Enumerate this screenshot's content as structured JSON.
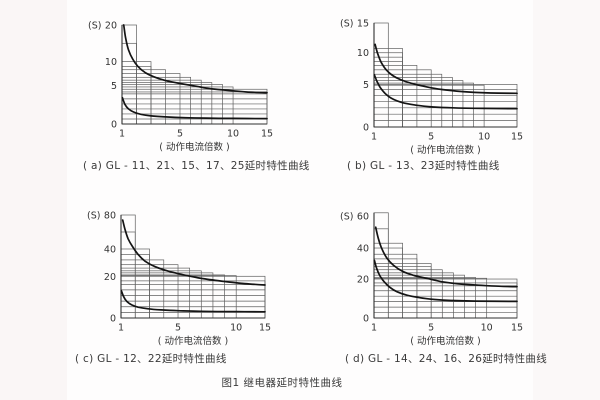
{
  "figure": {
    "title": "图1 继电器延时特性曲线"
  },
  "colors": {
    "curve": "#141414",
    "grid": "#5f5f5f",
    "axis": "#2f2f2f",
    "text": "#333333",
    "page_background": "#fefdfd",
    "margin_background": "#faf6f6"
  },
  "chart_data": [
    {
      "id": "a",
      "type": "line",
      "caption": "( a) GL - 11、21、15、17、25延时特性曲线",
      "y_unit": "(S)",
      "xlabel": "( 动作电流倍数 )",
      "x_ticks": [
        1,
        5,
        10,
        15
      ],
      "y_ticks": [
        0,
        5,
        10,
        20
      ],
      "x_range": [
        1,
        15
      ],
      "y_range": [
        0,
        20
      ],
      "x_anchors": [
        [
          1,
          0
        ],
        [
          5,
          0.4
        ],
        [
          10,
          0.766
        ],
        [
          15,
          1
        ]
      ],
      "y_anchors": [
        [
          0,
          0
        ],
        [
          5,
          0.39
        ],
        [
          10,
          0.63
        ],
        [
          15,
          0.815
        ],
        [
          20,
          1
        ]
      ],
      "tolerance_steps": [
        [
          2,
          20
        ],
        [
          2,
          15
        ],
        [
          3,
          10
        ],
        [
          3,
          9
        ],
        [
          4,
          8.3
        ],
        [
          5,
          7.5
        ],
        [
          6,
          6.7
        ],
        [
          7,
          6.1
        ],
        [
          8,
          5.6
        ],
        [
          9,
          5.2
        ],
        [
          10,
          4.8
        ],
        [
          15,
          4.5
        ],
        [
          15,
          4.15
        ]
      ],
      "mesh_hlines": [
        0.65,
        1.3,
        1.95,
        2.6,
        3.25,
        3.9
      ],
      "series": [
        {
          "name": "upper-limit",
          "points": [
            [
              1.12,
              20
            ],
            [
              1.25,
              16.5
            ],
            [
              1.45,
              13.2
            ],
            [
              1.75,
              10.6
            ],
            [
              2.1,
              9.0
            ],
            [
              2.6,
              7.7
            ],
            [
              3.2,
              6.8
            ],
            [
              4,
              6.0
            ],
            [
              5,
              5.4
            ],
            [
              6.5,
              4.9
            ],
            [
              8,
              4.55
            ],
            [
              10,
              4.3
            ],
            [
              12,
              4.15
            ],
            [
              15,
              4.05
            ]
          ]
        },
        {
          "name": "lower-limit",
          "points": [
            [
              1.03,
              3.4
            ],
            [
              1.2,
              2.55
            ],
            [
              1.45,
              1.95
            ],
            [
              1.8,
              1.55
            ],
            [
              2.3,
              1.25
            ],
            [
              3,
              1.05
            ],
            [
              4,
              0.92
            ],
            [
              5.5,
              0.82
            ],
            [
              7.5,
              0.76
            ],
            [
              10,
              0.72
            ],
            [
              15,
              0.7
            ]
          ]
        }
      ],
      "legend": "none",
      "grid": "stepped-tolerance-boxes"
    },
    {
      "id": "b",
      "type": "line",
      "caption": "( b) GL - 13、23延时特性曲线",
      "y_unit": "(S)",
      "xlabel": "( 动作电流倍数 )",
      "x_ticks": [
        1,
        5,
        10,
        15
      ],
      "y_ticks": [
        0,
        5,
        10,
        15
      ],
      "x_range": [
        1,
        15
      ],
      "y_range": [
        0,
        15
      ],
      "x_anchors": [
        [
          1,
          0
        ],
        [
          5,
          0.4
        ],
        [
          10,
          0.77
        ],
        [
          15,
          1
        ]
      ],
      "y_anchors": [
        [
          0,
          0
        ],
        [
          5,
          0.41
        ],
        [
          10,
          0.714
        ],
        [
          15,
          1
        ]
      ],
      "tolerance_steps": [
        [
          2,
          15
        ],
        [
          3,
          10.7
        ],
        [
          3,
          10
        ],
        [
          3,
          9.3
        ],
        [
          3,
          8.6
        ],
        [
          4,
          8
        ],
        [
          5,
          7.3
        ],
        [
          6,
          6.6
        ],
        [
          7,
          6.1
        ],
        [
          8,
          5.6
        ],
        [
          9,
          5.2
        ],
        [
          10,
          4.9
        ],
        [
          15,
          5.0
        ],
        [
          15,
          4.4
        ]
      ],
      "mesh_hlines": [
        0.75,
        1.5,
        2.25,
        3.0,
        3.7
      ],
      "series": [
        {
          "name": "upper-limit",
          "points": [
            [
              1.08,
              11.4
            ],
            [
              1.25,
              9.9
            ],
            [
              1.5,
              8.5
            ],
            [
              1.85,
              7.3
            ],
            [
              2.3,
              6.4
            ],
            [
              2.9,
              5.7
            ],
            [
              3.7,
              5.1
            ],
            [
              4.7,
              4.7
            ],
            [
              6,
              4.4
            ],
            [
              8,
              4.15
            ],
            [
              10.5,
              4.0
            ],
            [
              15,
              3.95
            ]
          ]
        },
        {
          "name": "lower-limit",
          "points": [
            [
              1.03,
              6.5
            ],
            [
              1.2,
              5.5
            ],
            [
              1.45,
              4.6
            ],
            [
              1.8,
              3.9
            ],
            [
              2.3,
              3.3
            ],
            [
              3,
              2.85
            ],
            [
              4,
              2.55
            ],
            [
              5.2,
              2.35
            ],
            [
              7,
              2.25
            ],
            [
              10,
              2.18
            ],
            [
              15,
              2.15
            ]
          ]
        }
      ],
      "legend": "none",
      "grid": "stepped-tolerance-boxes"
    },
    {
      "id": "c",
      "type": "line",
      "caption": "( c) GL - 12、22延时特性曲线",
      "y_unit": "(S)",
      "xlabel": "( 动作电流倍数 )",
      "x_ticks": [
        1,
        5,
        10,
        15
      ],
      "y_ticks": [
        0,
        20,
        40,
        80
      ],
      "x_range": [
        1,
        15
      ],
      "y_range": [
        0,
        80
      ],
      "x_anchors": [
        [
          1,
          0
        ],
        [
          5,
          0.396
        ],
        [
          10,
          0.8
        ],
        [
          15,
          1
        ]
      ],
      "y_anchors": [
        [
          0,
          0
        ],
        [
          20,
          0.405
        ],
        [
          40,
          0.67
        ],
        [
          80,
          1
        ]
      ],
      "tolerance_steps": [
        [
          2,
          80
        ],
        [
          2,
          60
        ],
        [
          3,
          40
        ],
        [
          3,
          36
        ],
        [
          4,
          32
        ],
        [
          5,
          28.5
        ],
        [
          6,
          26
        ],
        [
          7,
          24
        ],
        [
          8,
          22.5
        ],
        [
          9,
          21
        ],
        [
          10,
          20.5
        ],
        [
          15,
          20
        ],
        [
          15,
          17.8
        ],
        [
          15,
          16
        ]
      ],
      "mesh_hlines": [
        2.7,
        5.4,
        8.1,
        10.8,
        13.5
      ],
      "series": [
        {
          "name": "upper-limit",
          "points": [
            [
              1.12,
              74
            ],
            [
              1.28,
              63
            ],
            [
              1.5,
              52
            ],
            [
              1.8,
              43
            ],
            [
              2.2,
              36
            ],
            [
              2.7,
              31
            ],
            [
              3.4,
              27
            ],
            [
              4.3,
              23.8
            ],
            [
              5.5,
              21
            ],
            [
              7,
              19
            ],
            [
              9,
              17.5
            ],
            [
              11.5,
              16.5
            ],
            [
              15,
              15.8
            ]
          ]
        },
        {
          "name": "lower-limit",
          "points": [
            [
              1.03,
              13
            ],
            [
              1.18,
              10.3
            ],
            [
              1.4,
              8.0
            ],
            [
              1.75,
              6.3
            ],
            [
              2.2,
              5.2
            ],
            [
              2.9,
              4.4
            ],
            [
              3.8,
              3.9
            ],
            [
              5,
              3.5
            ],
            [
              7,
              3.2
            ],
            [
              10,
              3.05
            ],
            [
              15,
              2.95
            ]
          ]
        }
      ],
      "legend": "none",
      "grid": "stepped-tolerance-boxes"
    },
    {
      "id": "d",
      "type": "line",
      "caption": "( d) GL - 14、24、16、26延时特性曲线",
      "y_unit": "(S)",
      "xlabel": "( 动作电流倍数 )",
      "x_ticks": [
        1,
        5,
        10,
        15
      ],
      "y_ticks": [
        0,
        20,
        40,
        60
      ],
      "x_range": [
        1,
        15
      ],
      "y_range": [
        0,
        60
      ],
      "x_anchors": [
        [
          1,
          0
        ],
        [
          5,
          0.4
        ],
        [
          10,
          0.788
        ],
        [
          15,
          1
        ]
      ],
      "y_anchors": [
        [
          0,
          0
        ],
        [
          20,
          0.382
        ],
        [
          40,
          0.686
        ],
        [
          60,
          1
        ]
      ],
      "tolerance_steps": [
        [
          2,
          62
        ],
        [
          2,
          52
        ],
        [
          3,
          43
        ],
        [
          3,
          40
        ],
        [
          4,
          36
        ],
        [
          4,
          33
        ],
        [
          5,
          30
        ],
        [
          5,
          28
        ],
        [
          6,
          26
        ],
        [
          7,
          24
        ],
        [
          8,
          22.5
        ],
        [
          9,
          21
        ],
        [
          10,
          20.5
        ],
        [
          15,
          20
        ],
        [
          15,
          18
        ],
        [
          15,
          16.5
        ]
      ],
      "mesh_hlines": [
        2.8,
        5.6,
        8.4,
        11.2,
        14
      ],
      "series": [
        {
          "name": "upper-limit",
          "points": [
            [
              1.12,
              53
            ],
            [
              1.3,
              46
            ],
            [
              1.55,
              39.5
            ],
            [
              1.9,
              33.5
            ],
            [
              2.35,
              29
            ],
            [
              3,
              25
            ],
            [
              3.8,
              22.3
            ],
            [
              4.8,
              20.2
            ],
            [
              6,
              18.6
            ],
            [
              7.5,
              17.5
            ],
            [
              9.5,
              16.8
            ],
            [
              12,
              16.3
            ],
            [
              15,
              16.1
            ]
          ]
        },
        {
          "name": "lower-limit",
          "points": [
            [
              1.03,
              32
            ],
            [
              1.18,
              27
            ],
            [
              1.4,
              22.3
            ],
            [
              1.7,
              18.7
            ],
            [
              2.1,
              15.8
            ],
            [
              2.6,
              13.5
            ],
            [
              3.3,
              11.7
            ],
            [
              4.2,
              10.4
            ],
            [
              5.3,
              9.5
            ],
            [
              6.8,
              9.0
            ],
            [
              9,
              8.7
            ],
            [
              15,
              8.5
            ]
          ]
        }
      ],
      "legend": "none",
      "grid": "stepped-tolerance-boxes"
    }
  ]
}
